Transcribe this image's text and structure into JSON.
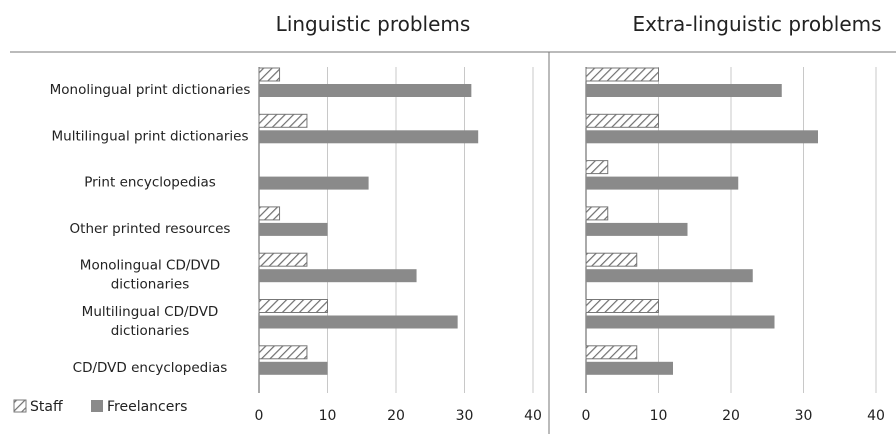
{
  "chart_data": {
    "type": "bar",
    "orientation": "horizontal",
    "categories": [
      "Monolingual print dictionaries",
      "Multilingual print dictionaries",
      "Print encyclopedias",
      "Other printed resources",
      "Monolingual CD/DVD dictionaries",
      "Multilingual CD/DVD dictionaries",
      "CD/DVD encyclopedias"
    ],
    "category_lines": [
      [
        "Monolingual print dictionaries"
      ],
      [
        "Multilingual print dictionaries"
      ],
      [
        "Print encyclopedias"
      ],
      [
        "Other printed resources"
      ],
      [
        "Monolingual CD/DVD",
        "dictionaries"
      ],
      [
        "Multilingual CD/DVD",
        "dictionaries"
      ],
      [
        "CD/DVD encyclopedias"
      ]
    ],
    "xlim": [
      0,
      40
    ],
    "xticks": [
      0,
      10,
      20,
      30,
      40
    ],
    "grid": true,
    "legend_position": "bottom-left",
    "series_style": [
      {
        "name": "Staff",
        "fill": "hatched",
        "color": "#8a8a8a"
      },
      {
        "name": "Freelancers",
        "fill": "solid",
        "color": "#8a8a8a"
      }
    ],
    "panels": [
      {
        "title": "Linguistic problems",
        "series": [
          {
            "name": "Staff",
            "values": [
              3,
              7,
              0,
              3,
              7,
              10,
              7
            ]
          },
          {
            "name": "Freelancers",
            "values": [
              31,
              32,
              16,
              10,
              23,
              29,
              10
            ]
          }
        ]
      },
      {
        "title": "Extra-linguistic problems",
        "series": [
          {
            "name": "Staff",
            "values": [
              10,
              10,
              3,
              3,
              7,
              10,
              7
            ]
          },
          {
            "name": "Freelancers",
            "values": [
              27,
              32,
              21,
              14,
              23,
              26,
              12
            ]
          }
        ]
      }
    ]
  }
}
